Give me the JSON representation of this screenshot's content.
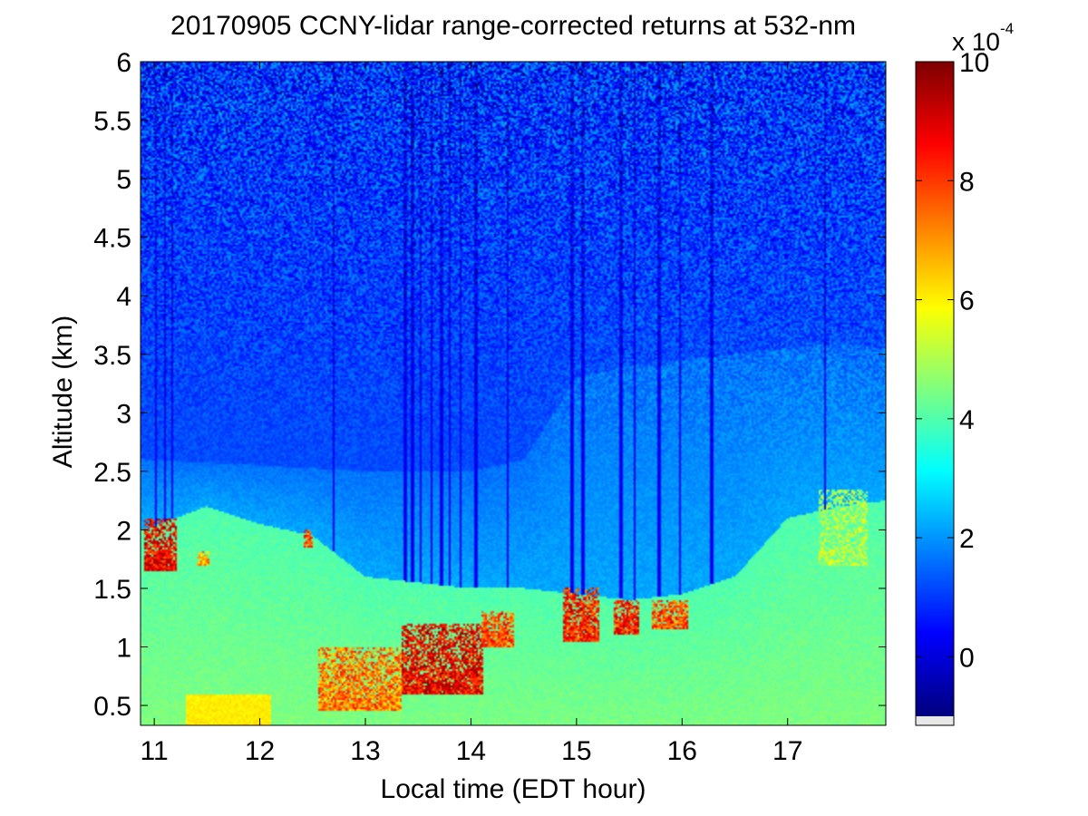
{
  "chart_data": {
    "type": "heatmap",
    "title": "20170905 CCNY-lidar range-corrected returns at 532-nm",
    "xlabel": "Local time (EDT hour)",
    "ylabel": "Altitude (km)",
    "xlim": [
      10.87,
      17.93
    ],
    "ylim": [
      0.33,
      6.0
    ],
    "xticks": [
      11,
      12,
      13,
      14,
      15,
      16,
      17
    ],
    "yticks": [
      0.5,
      1,
      1.5,
      2,
      2.5,
      3,
      3.5,
      4,
      4.5,
      5,
      5.5,
      6
    ],
    "ytick_labels": [
      "0.5",
      "1",
      "1.5",
      "2",
      "2.5",
      "3",
      "3.5",
      "4",
      "4.5",
      "5",
      "5.5",
      "6"
    ],
    "colorbar": {
      "colormap": "jet",
      "range": [
        -1,
        10
      ],
      "ticks": [
        0,
        2,
        4,
        6,
        8,
        10
      ],
      "exponent_prefix": "x 10",
      "exponent": "-4",
      "units_scale": 0.0001
    },
    "boundary_layer_height_km": [
      [
        10.9,
        2.0
      ],
      [
        11.5,
        2.2
      ],
      [
        12.0,
        2.05
      ],
      [
        12.5,
        1.95
      ],
      [
        13.0,
        1.6
      ],
      [
        13.5,
        1.55
      ],
      [
        14.0,
        1.5
      ],
      [
        14.5,
        1.5
      ],
      [
        15.0,
        1.45
      ],
      [
        15.5,
        1.4
      ],
      [
        16.0,
        1.45
      ],
      [
        16.5,
        1.6
      ],
      [
        17.0,
        2.1
      ],
      [
        17.5,
        2.2
      ],
      [
        17.93,
        2.25
      ]
    ],
    "residual_layer_top_km": [
      [
        10.9,
        2.6
      ],
      [
        12.0,
        2.55
      ],
      [
        13.0,
        2.5
      ],
      [
        14.0,
        2.5
      ],
      [
        14.5,
        2.6
      ],
      [
        15.0,
        3.3
      ],
      [
        15.5,
        3.4
      ],
      [
        16.0,
        3.45
      ],
      [
        16.5,
        3.5
      ],
      [
        17.0,
        3.55
      ],
      [
        17.5,
        3.6
      ],
      [
        17.93,
        3.55
      ]
    ],
    "aerosol_clouds": [
      {
        "x": [
          10.9,
          11.22
        ],
        "y": [
          1.65,
          2.1
        ],
        "value": 10
      },
      {
        "x": [
          11.4,
          11.52
        ],
        "y": [
          1.7,
          1.82
        ],
        "value": 8
      },
      {
        "x": [
          12.42,
          12.5
        ],
        "y": [
          1.85,
          2.0
        ],
        "value": 9
      },
      {
        "x": [
          12.55,
          13.35
        ],
        "y": [
          0.45,
          1.0
        ],
        "value": 8.5
      },
      {
        "x": [
          13.35,
          14.12
        ],
        "y": [
          0.6,
          1.2
        ],
        "value": 10
      },
      {
        "x": [
          14.1,
          14.4
        ],
        "y": [
          1.0,
          1.3
        ],
        "value": 9
      },
      {
        "x": [
          14.88,
          15.22
        ],
        "y": [
          1.05,
          1.5
        ],
        "value": 9.5
      },
      {
        "x": [
          15.35,
          15.6
        ],
        "y": [
          1.1,
          1.4
        ],
        "value": 9.5
      },
      {
        "x": [
          15.72,
          16.05
        ],
        "y": [
          1.15,
          1.4
        ],
        "value": 9
      },
      {
        "x": [
          17.3,
          17.75
        ],
        "y": [
          1.7,
          2.35
        ],
        "value": 6
      }
    ],
    "low_signal_columns_hours": [
      11.02,
      11.1,
      11.17,
      12.7,
      13.38,
      13.45,
      13.52,
      13.63,
      13.72,
      13.8,
      13.9,
      14.05,
      14.35,
      14.96,
      15.06,
      15.42,
      15.55,
      15.78,
      15.98,
      16.28,
      17.35
    ]
  }
}
